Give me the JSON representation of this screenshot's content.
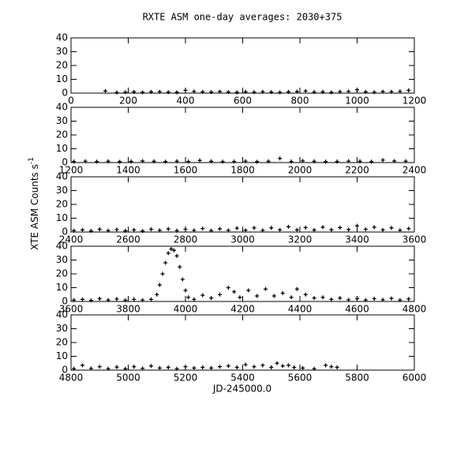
{
  "chart_data": [
    {
      "type": "scatter",
      "title": "RXTE ASM one-day averages: 2030+375",
      "color": "#000000",
      "xlim": [
        0,
        1200
      ],
      "xticks": [
        0,
        200,
        400,
        600,
        800,
        1000,
        1200
      ],
      "ylim": [
        0,
        40
      ],
      "yticks": [
        0,
        10,
        20,
        30,
        40
      ],
      "x": [
        120,
        160,
        190,
        220,
        250,
        280,
        310,
        340,
        370,
        400,
        430,
        460,
        490,
        520,
        550,
        580,
        610,
        640,
        670,
        700,
        730,
        760,
        790,
        820,
        850,
        880,
        910,
        940,
        970,
        1000,
        1030,
        1060,
        1090,
        1120,
        1150,
        1180
      ],
      "values": [
        1.5,
        0.5,
        0.7,
        0.9,
        0.6,
        0.9,
        1.0,
        0.7,
        0.6,
        2.0,
        1.2,
        0.9,
        0.8,
        1.1,
        0.8,
        0.6,
        0.9,
        0.7,
        1.0,
        0.8,
        0.6,
        0.9,
        1.1,
        1.5,
        0.8,
        0.9,
        0.6,
        1.0,
        1.2,
        2.5,
        0.9,
        0.7,
        1.1,
        1.0,
        1.3,
        2.0
      ]
    },
    {
      "type": "scatter",
      "color": "#000000",
      "xlim": [
        1200,
        2400
      ],
      "xticks": [
        1200,
        1400,
        1600,
        1800,
        2000,
        2200,
        2400
      ],
      "ylim": [
        0,
        40
      ],
      "yticks": [
        0,
        10,
        20,
        30,
        40
      ],
      "x": [
        1210,
        1250,
        1290,
        1330,
        1370,
        1410,
        1450,
        1490,
        1530,
        1570,
        1610,
        1650,
        1690,
        1730,
        1770,
        1810,
        1850,
        1890,
        1930,
        1970,
        2010,
        2050,
        2090,
        2130,
        2170,
        2210,
        2250,
        2290,
        2330,
        2370
      ],
      "values": [
        0.8,
        1.0,
        0.7,
        0.9,
        0.6,
        0.8,
        1.1,
        0.9,
        0.7,
        1.0,
        0.8,
        1.5,
        0.9,
        0.7,
        0.8,
        1.0,
        0.6,
        0.9,
        3.0,
        0.8,
        1.2,
        0.9,
        0.7,
        0.8,
        1.0,
        0.9,
        0.7,
        1.8,
        1.1,
        1.0
      ]
    },
    {
      "type": "scatter",
      "y_label": "XTE ASM Counts s",
      "y_label_exponent": "-1",
      "color": "#000000",
      "xlim": [
        2400,
        3600
      ],
      "xticks": [
        2400,
        2600,
        2800,
        3000,
        3200,
        3400,
        3600
      ],
      "ylim": [
        0,
        40
      ],
      "yticks": [
        0,
        10,
        20,
        30,
        40
      ],
      "x": [
        2410,
        2440,
        2470,
        2500,
        2530,
        2560,
        2590,
        2620,
        2650,
        2680,
        2710,
        2740,
        2770,
        2800,
        2830,
        2860,
        2890,
        2920,
        2950,
        2980,
        3010,
        3040,
        3070,
        3100,
        3130,
        3160,
        3190,
        3220,
        3250,
        3280,
        3310,
        3340,
        3370,
        3400,
        3430,
        3460,
        3490,
        3520,
        3550,
        3580
      ],
      "values": [
        1.0,
        1.5,
        0.8,
        2.0,
        1.0,
        1.8,
        0.9,
        1.5,
        0.8,
        2.0,
        1.2,
        2.2,
        1.0,
        2.0,
        1.2,
        2.5,
        1.0,
        2.3,
        1.2,
        2.8,
        1.3,
        3.0,
        1.2,
        3.0,
        1.5,
        3.8,
        1.5,
        3.2,
        1.4,
        3.5,
        1.6,
        3.2,
        1.8,
        4.5,
        2.0,
        3.5,
        1.5,
        3.0,
        1.3,
        2.5
      ]
    },
    {
      "type": "scatter",
      "color": "#000000",
      "xlim": [
        3600,
        4800
      ],
      "xticks": [
        3600,
        3800,
        4000,
        4200,
        4400,
        4600,
        4800
      ],
      "ylim": [
        0,
        40
      ],
      "yticks": [
        0,
        10,
        20,
        30,
        40
      ],
      "x": [
        3610,
        3640,
        3670,
        3700,
        3730,
        3760,
        3790,
        3820,
        3850,
        3880,
        3900,
        3910,
        3920,
        3930,
        3940,
        3950,
        3960,
        3970,
        3980,
        3990,
        4000,
        4010,
        4030,
        4060,
        4090,
        4120,
        4150,
        4170,
        4190,
        4220,
        4250,
        4280,
        4310,
        4340,
        4370,
        4390,
        4420,
        4450,
        4480,
        4510,
        4540,
        4570,
        4600,
        4630,
        4660,
        4690,
        4720,
        4750,
        4780
      ],
      "values": [
        1.0,
        1.5,
        0.8,
        2.0,
        1.0,
        1.8,
        0.9,
        1.5,
        1.0,
        1.5,
        5,
        12,
        20,
        28,
        35,
        38,
        37,
        33,
        25,
        16,
        8,
        3,
        1.5,
        4.5,
        2.5,
        5,
        10,
        7,
        3,
        8,
        4,
        9,
        4,
        6,
        3,
        9,
        5,
        2.5,
        3,
        1.5,
        2.5,
        1.2,
        2.0,
        1.0,
        2.0,
        1.2,
        2.2,
        1.0,
        1.8
      ]
    },
    {
      "type": "scatter",
      "x_label": "JD-245000.0",
      "color": "#000000",
      "xlim": [
        4800,
        6000
      ],
      "xticks": [
        4800,
        5000,
        5200,
        5400,
        5600,
        5800,
        6000
      ],
      "ylim": [
        0,
        40
      ],
      "yticks": [
        0,
        10,
        20,
        30,
        40
      ],
      "x": [
        4810,
        4840,
        4870,
        4900,
        4930,
        4960,
        4990,
        5020,
        5050,
        5080,
        5110,
        5140,
        5170,
        5200,
        5230,
        5260,
        5290,
        5320,
        5350,
        5380,
        5410,
        5440,
        5470,
        5500,
        5520,
        5540,
        5560,
        5580,
        5610,
        5650,
        5690,
        5710,
        5730
      ],
      "values": [
        1.0,
        3.5,
        1.2,
        2.5,
        1.0,
        2.2,
        1.0,
        2.5,
        1.2,
        3.0,
        1.5,
        2.0,
        1.0,
        2.5,
        1.5,
        2.0,
        1.5,
        2.5,
        3.0,
        2.0,
        4.0,
        2.5,
        3.5,
        2.0,
        5.0,
        3.0,
        3.5,
        2.0,
        1.5,
        1.0,
        3.5,
        2.5,
        2.0
      ]
    }
  ]
}
